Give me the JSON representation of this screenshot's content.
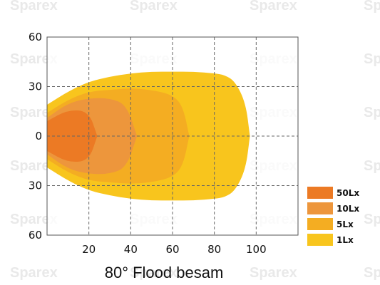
{
  "chart_data": {
    "type": "area",
    "title": "80° Flood besam",
    "xlabel": "",
    "ylabel": "",
    "xlim": [
      0,
      120
    ],
    "ylim": [
      -60,
      60
    ],
    "x_ticks": [
      20,
      40,
      60,
      80,
      100
    ],
    "y_ticks": [
      {
        "value": 60,
        "label": "60"
      },
      {
        "value": 30,
        "label": "30"
      },
      {
        "value": 0,
        "label": "0"
      },
      {
        "value": -30,
        "label": "30"
      },
      {
        "value": -60,
        "label": "60"
      }
    ],
    "grid": true,
    "legend_position": "bottom-right",
    "series": [
      {
        "name": "1Lx",
        "color": "#f8c51d",
        "x": [
          0,
          10,
          20,
          30,
          40,
          50,
          60,
          70,
          80,
          85,
          90,
          95,
          97
        ],
        "y_half_width": [
          19,
          27,
          33,
          36,
          38,
          39,
          39,
          39,
          38,
          37,
          33,
          20,
          0
        ]
      },
      {
        "name": "5Lx",
        "color": "#f4ad22",
        "x": [
          0,
          10,
          20,
          30,
          40,
          50,
          60,
          65,
          68
        ],
        "y_half_width": [
          14,
          22,
          27,
          28,
          29,
          28,
          25,
          18,
          0
        ]
      },
      {
        "name": "10Lx",
        "color": "#ed963c",
        "x": [
          0,
          10,
          20,
          30,
          38,
          43
        ],
        "y_half_width": [
          11,
          20,
          23,
          23,
          19,
          0
        ]
      },
      {
        "name": "50Lx",
        "color": "#ec7a24",
        "x": [
          0,
          10,
          20,
          24
        ],
        "y_half_width": [
          9,
          16,
          15,
          0
        ]
      }
    ]
  },
  "watermark": "Sparex"
}
